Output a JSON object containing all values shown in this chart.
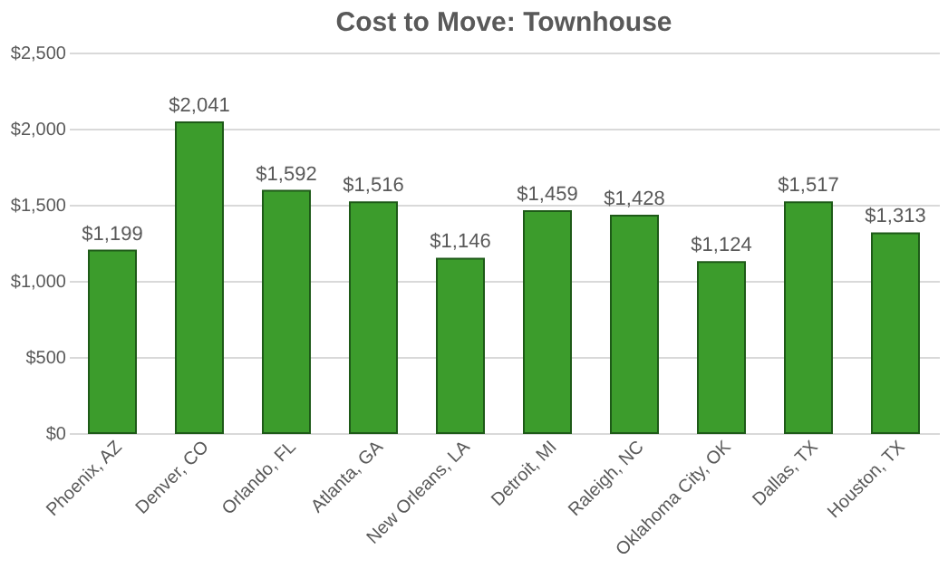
{
  "chart_data": {
    "type": "bar",
    "title": "Cost to Move: Townhouse",
    "categories": [
      "Phoenix, AZ",
      "Denver, CO",
      "Orlando, FL",
      "Atlanta, GA",
      "New Orleans, LA",
      "Detroit, MI",
      "Raleigh, NC",
      "Oklahoma City, OK",
      "Dallas, TX",
      "Houston, TX"
    ],
    "values": [
      1199,
      2041,
      1592,
      1516,
      1146,
      1459,
      1428,
      1124,
      1517,
      1313
    ],
    "value_labels": [
      "$1,199",
      "$2,041",
      "$1,592",
      "$1,516",
      "$1,146",
      "$1,459",
      "$1,428",
      "$1,124",
      "$1,517",
      "$1,313"
    ],
    "color": "#3c9c2c",
    "ylim": [
      0,
      2500
    ],
    "yticks": [
      {
        "value": 0,
        "label": "$0"
      },
      {
        "value": 500,
        "label": "$500"
      },
      {
        "value": 1000,
        "label": "$1,000"
      },
      {
        "value": 1500,
        "label": "$1,500"
      },
      {
        "value": 2000,
        "label": "$2,000"
      },
      {
        "value": 2500,
        "label": "$2,500"
      }
    ],
    "grid": "y"
  }
}
